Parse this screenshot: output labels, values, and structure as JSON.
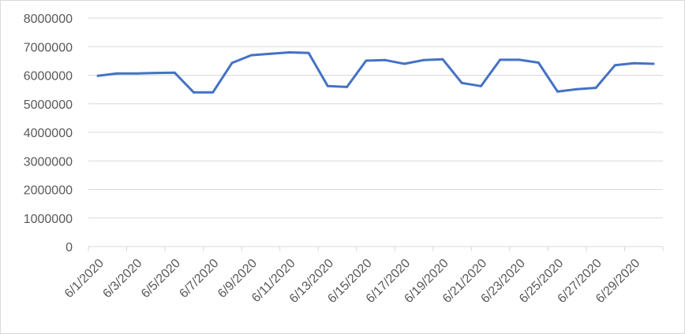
{
  "chart_data": {
    "type": "line",
    "title": "",
    "xlabel": "",
    "ylabel": "",
    "ylim": [
      0,
      8000000
    ],
    "y_ticks": [
      0,
      1000000,
      2000000,
      3000000,
      4000000,
      5000000,
      6000000,
      7000000,
      8000000
    ],
    "y_tick_labels": [
      "0",
      "1000000",
      "2000000",
      "3000000",
      "4000000",
      "5000000",
      "6000000",
      "7000000",
      "8000000"
    ],
    "x_tick_labels": [
      "6/1/2020",
      "6/3/2020",
      "6/5/2020",
      "6/7/2020",
      "6/9/2020",
      "6/11/2020",
      "6/13/2020",
      "6/15/2020",
      "6/17/2020",
      "6/19/2020",
      "6/21/2020",
      "6/23/2020",
      "6/25/2020",
      "6/27/2020",
      "6/29/2020"
    ],
    "x": [
      "6/1/2020",
      "6/2/2020",
      "6/3/2020",
      "6/4/2020",
      "6/5/2020",
      "6/6/2020",
      "6/7/2020",
      "6/8/2020",
      "6/9/2020",
      "6/10/2020",
      "6/11/2020",
      "6/12/2020",
      "6/13/2020",
      "6/14/2020",
      "6/15/2020",
      "6/16/2020",
      "6/17/2020",
      "6/18/2020",
      "6/19/2020",
      "6/20/2020",
      "6/21/2020",
      "6/22/2020",
      "6/23/2020",
      "6/24/2020",
      "6/25/2020",
      "6/26/2020",
      "6/27/2020",
      "6/28/2020",
      "6/29/2020",
      "6/30/2020"
    ],
    "series": [
      {
        "values": [
          5980000,
          6060000,
          6060000,
          6080000,
          6090000,
          5400000,
          5400000,
          6430000,
          6700000,
          6750000,
          6800000,
          6780000,
          5620000,
          5590000,
          6510000,
          6530000,
          6400000,
          6530000,
          6560000,
          5730000,
          5620000,
          6540000,
          6540000,
          6440000,
          5430000,
          5510000,
          5560000,
          6350000,
          6420000,
          6400000
        ],
        "color": "#4472c4"
      }
    ],
    "grid": true,
    "legend": "none"
  }
}
